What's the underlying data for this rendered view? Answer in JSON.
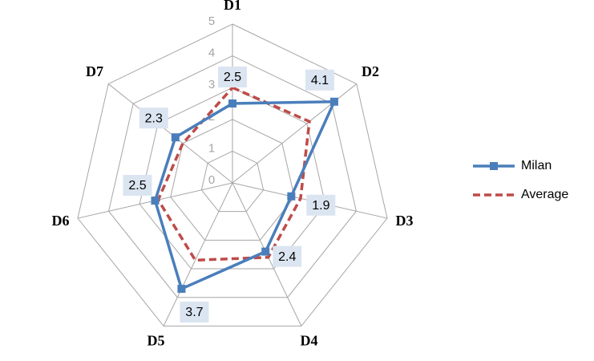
{
  "chart_data": {
    "type": "radar",
    "categories": [
      "D1",
      "D2",
      "D3",
      "D4",
      "D5",
      "D6",
      "D7"
    ],
    "series": [
      {
        "name": "Milan",
        "color": "#4a7ebb",
        "line_style": "solid",
        "marker": "square",
        "data_labels": true,
        "values": [
          2.5,
          4.1,
          1.9,
          2.4,
          3.7,
          2.5,
          2.3
        ]
      },
      {
        "name": "Average",
        "color": "#be4b48",
        "line_style": "dashed",
        "marker": "none",
        "data_labels": false,
        "values": [
          3.0,
          3.1,
          2.2,
          2.6,
          2.7,
          2.4,
          2.0
        ]
      }
    ],
    "ylim": [
      0,
      5
    ],
    "yticks": [
      0,
      1,
      2,
      3,
      4,
      5
    ],
    "grid": true,
    "legend": "right"
  }
}
